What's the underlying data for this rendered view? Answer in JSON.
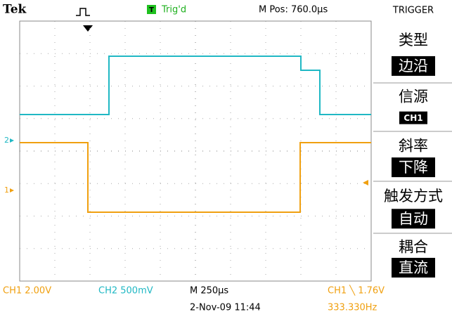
{
  "header": {
    "brand": "Tek",
    "status": "Trig'd",
    "position": "M Pos: 760.0µs"
  },
  "menu": {
    "title": "TRIGGER",
    "items": [
      {
        "label": "类型",
        "value": "边沿"
      },
      {
        "label": "信源",
        "value": "CH1"
      },
      {
        "label": "斜率",
        "value": "下降"
      },
      {
        "label": "触发方式",
        "value": "自动"
      },
      {
        "label": "耦合",
        "value": "直流"
      }
    ]
  },
  "markers": {
    "ch2": "2",
    "ch1": "1"
  },
  "footer": {
    "ch1_scale": "CH1  2.00V",
    "ch2_scale": "CH2  500mV",
    "timebase": "M 250µs",
    "trigger": "CH1 ╲ 1.76V",
    "datetime": "2-Nov-09 11:44",
    "frequency": "333.330Hz"
  }
}
